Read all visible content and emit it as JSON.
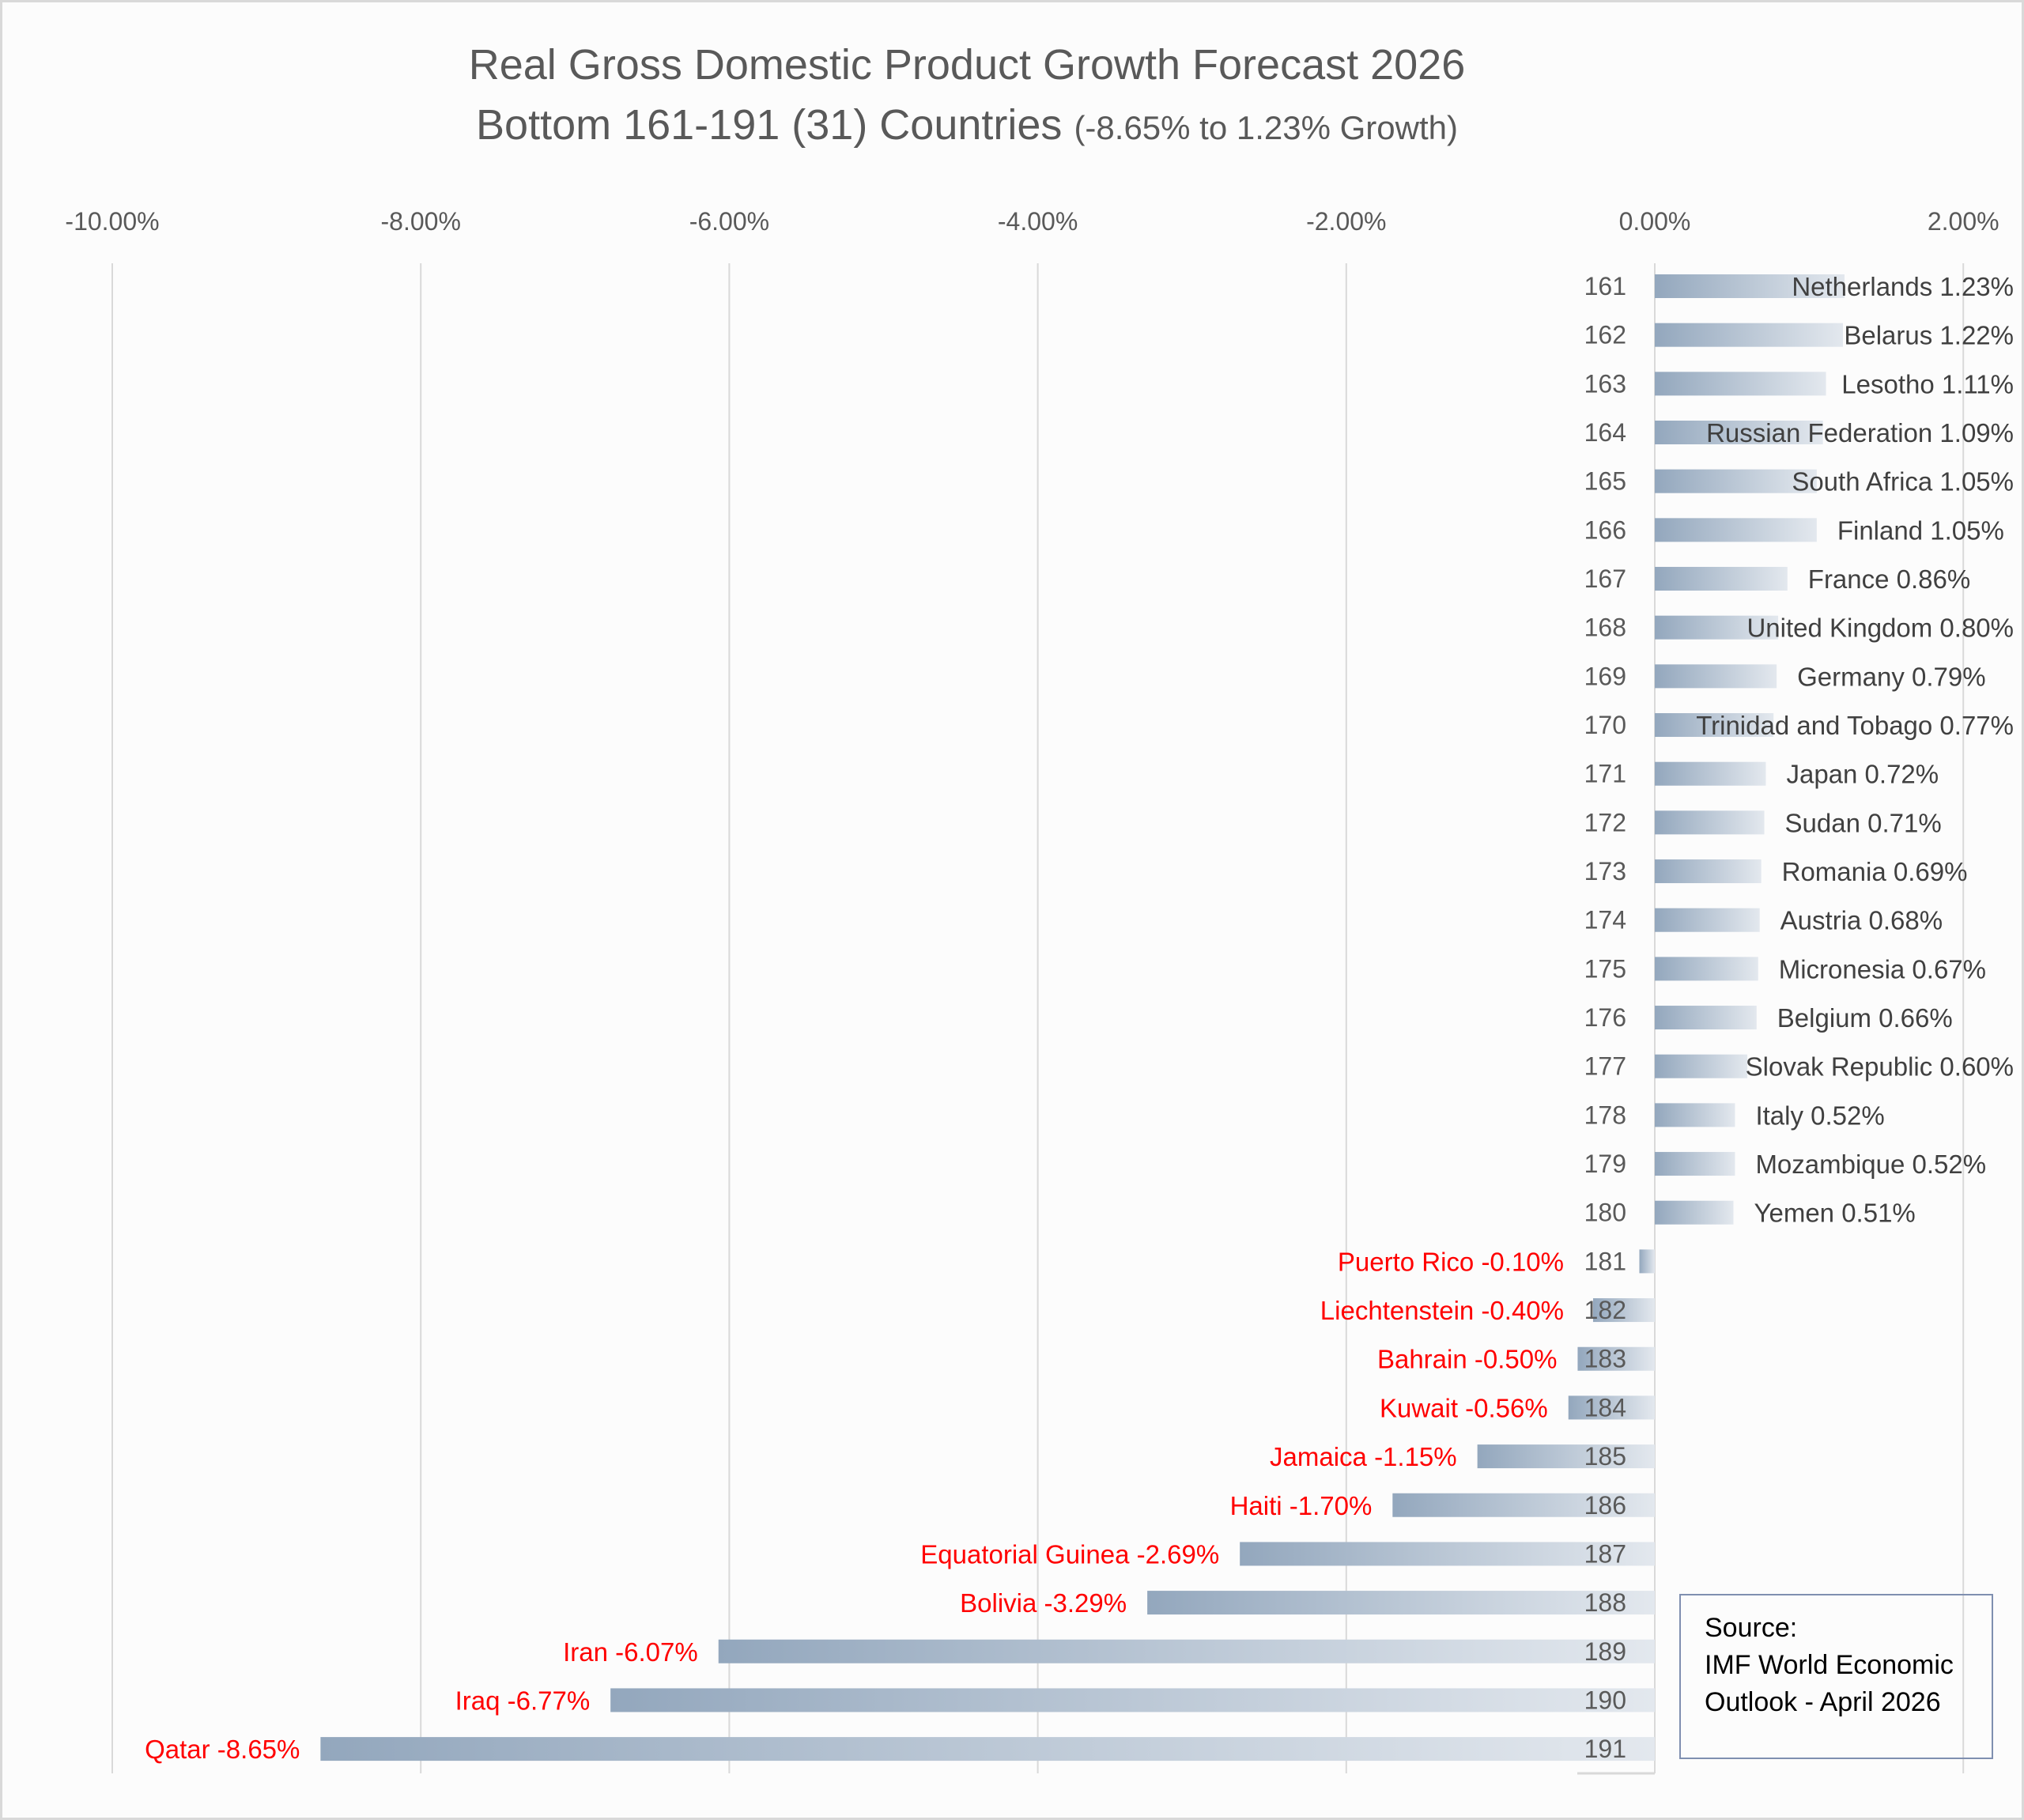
{
  "chart_data": {
    "type": "bar",
    "orientation": "horizontal",
    "title": "Real Gross Domestic Product Growth Forecast 2026",
    "subtitle_main": "Bottom 161-191 (31) Countries",
    "subtitle_note": "(-8.65% to 1.23% Growth)",
    "xlim": [
      -10,
      2
    ],
    "x_ticks": [
      "-10.00%",
      "-8.00%",
      "-6.00%",
      "-4.00%",
      "-2.00%",
      "0.00%",
      "2.00%"
    ],
    "x_tick_values": [
      -10,
      -8,
      -6,
      -4,
      -2,
      0,
      2
    ],
    "x_axis_position": "top",
    "grid": true,
    "colors": {
      "bar_dark": "#93a7bd",
      "bar_light": "#e3e8ee",
      "negative_label": "#ff0000",
      "positive_label": "#404040",
      "rank": "#595959"
    },
    "ranks": [
      161,
      162,
      163,
      164,
      165,
      166,
      167,
      168,
      169,
      170,
      171,
      172,
      173,
      174,
      175,
      176,
      177,
      178,
      179,
      180,
      181,
      182,
      183,
      184,
      185,
      186,
      187,
      188,
      189,
      190,
      191
    ],
    "categories": [
      "Netherlands",
      "Belarus",
      "Lesotho",
      "Russian Federation",
      "South Africa",
      "Finland",
      "France",
      "United Kingdom",
      "Germany",
      "Trinidad and Tobago",
      "Japan",
      "Sudan",
      "Romania",
      "Austria",
      "Micronesia",
      "Belgium",
      "Slovak Republic",
      "Italy",
      "Mozambique",
      "Yemen",
      "Puerto Rico",
      "Liechtenstein",
      "Bahrain",
      "Kuwait",
      "Jamaica",
      "Haiti",
      "Equatorial Guinea",
      "Bolivia",
      "Iran",
      "Iraq",
      "Qatar"
    ],
    "values": [
      1.23,
      1.22,
      1.11,
      1.09,
      1.05,
      1.05,
      0.86,
      0.8,
      0.79,
      0.77,
      0.72,
      0.71,
      0.69,
      0.68,
      0.67,
      0.66,
      0.6,
      0.52,
      0.52,
      0.51,
      -0.1,
      -0.4,
      -0.5,
      -0.56,
      -1.15,
      -1.7,
      -2.69,
      -3.29,
      -6.07,
      -6.77,
      -8.65
    ],
    "data_labels": [
      "Netherlands 1.23%",
      "Belarus 1.22%",
      "Lesotho 1.11%",
      "Russian Federation 1.09%",
      "South Africa 1.05%",
      "Finland 1.05%",
      "France 0.86%",
      "United Kingdom 0.80%",
      "Germany 0.79%",
      "Trinidad and Tobago 0.77%",
      "Japan 0.72%",
      "Sudan 0.71%",
      "Romania 0.69%",
      "Austria 0.68%",
      "Micronesia 0.67%",
      "Belgium 0.66%",
      "Slovak Republic 0.60%",
      "Italy 0.52%",
      "Mozambique 0.52%",
      "Yemen 0.51%",
      "Puerto Rico -0.10%",
      "Liechtenstein -0.40%",
      "Bahrain -0.50%",
      "Kuwait -0.56%",
      "Jamaica -1.15%",
      "Haiti -1.70%",
      "Equatorial Guinea -2.69%",
      "Bolivia -3.29%",
      "Iran -6.07%",
      "Iraq -6.77%",
      "Qatar -8.65%"
    ]
  },
  "source": {
    "line1": "Source:",
    "line2": "IMF World Economic",
    "line3": "Outlook - April 2026"
  }
}
